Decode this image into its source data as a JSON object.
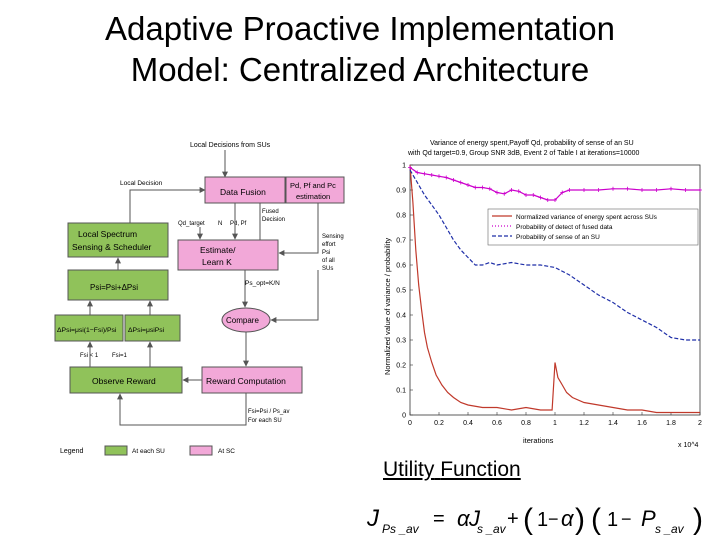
{
  "slide": {
    "title_line1": "Adaptive Proactive Implementation",
    "title_line2": "Model: Centralized Architecture",
    "caption_word1": "Utility",
    "caption_word2": "Function"
  },
  "diagram": {
    "local_decisions_label": "Local Decisions from SUs",
    "local_decision_label": "Local Decision",
    "data_fusion_label": "Data Fusion",
    "estimation_line1": "Pd, Pf and Pc",
    "estimation_line2": "estimation",
    "fused_decision_line1": "Fused",
    "fused_decision_line2": "Decision",
    "qd_target_label": "Qd_target",
    "n_label": "N",
    "pd_pf_label": "Pd, Pf",
    "local_spectrum_line1": "Local Spectrum",
    "local_spectrum_line2": "Sensing & Scheduler",
    "estimate_line1": "Estimate/",
    "estimate_line2": "Learn K",
    "sensing_effort_line1": "Sensing",
    "sensing_effort_line2": "effort",
    "sensing_effort_line3": "Psi",
    "sensing_effort_line4": "of all",
    "sensing_effort_line5": "SUs",
    "ps_update_label": "Psi=Psi+ΔPsi",
    "ps_opt_label": "Ps_opt=K/N",
    "compare_label": "Compare",
    "delta_left_label": "ΔPsi=μsi(1−Fsi)/Psi",
    "delta_right_label": "ΔPsi=μsiPsi",
    "fsi_less_label": "Fsi < 1",
    "fsi_equal_label": "Fsi=1",
    "observe_reward_label": "Observe Reward",
    "reward_computation_label": "Reward Computation",
    "reward_formula_line1": "Fsi=Psi / Ps_av",
    "reward_formula_line2": "For each SU",
    "legend_label": "Legend",
    "legend_su_label": "At each SU",
    "legend_sc_label": "At SC",
    "colors": {
      "green": "#90c25a",
      "pink": "#f2a8d8",
      "box_border": "#555555"
    }
  },
  "chart_data": {
    "type": "line",
    "title_line1": "Variance of energy spent,Payoff Qd, probability of sense of an SU",
    "title_line2": "with Qd target=0.9, Group SNR 3dB, Event 2 of Table I at iterations=10000",
    "xlabel": "iterations",
    "ylabel": "Normalized value of variance / probability",
    "x_multiplier_label": "x 10^4",
    "xlim": [
      0,
      2
    ],
    "ylim": [
      0,
      1
    ],
    "x_ticks": [
      "0",
      "0.2",
      "0.4",
      "0.6",
      "0.8",
      "1",
      "1.2",
      "1.4",
      "1.6",
      "1.8",
      "2"
    ],
    "y_ticks": [
      "0",
      "0.1",
      "0.2",
      "0.3",
      "0.4",
      "0.5",
      "0.6",
      "0.7",
      "0.8",
      "0.9",
      "1"
    ],
    "legend_position": "top-right",
    "series": [
      {
        "name": "Normalized variance of energy spent across SUs",
        "color": "#c0392b",
        "style": "solid",
        "x": [
          0,
          0.02,
          0.04,
          0.06,
          0.08,
          0.1,
          0.12,
          0.15,
          0.18,
          0.22,
          0.26,
          0.3,
          0.35,
          0.4,
          0.5,
          0.6,
          0.7,
          0.8,
          0.9,
          0.98,
          1.0,
          1.02,
          1.05,
          1.08,
          1.12,
          1.2,
          1.3,
          1.4,
          1.5,
          1.6,
          1.7,
          1.8,
          1.9,
          2.0
        ],
        "y": [
          1.0,
          0.85,
          0.66,
          0.52,
          0.42,
          0.33,
          0.27,
          0.21,
          0.16,
          0.12,
          0.09,
          0.07,
          0.05,
          0.04,
          0.03,
          0.03,
          0.02,
          0.03,
          0.02,
          0.02,
          0.21,
          0.15,
          0.12,
          0.09,
          0.07,
          0.05,
          0.04,
          0.03,
          0.02,
          0.02,
          0.01,
          0.01,
          0.01,
          0.01
        ]
      },
      {
        "name": "Probability of detect of fused data",
        "color": "#cc00cc",
        "style": "dot-plus",
        "x": [
          0,
          0.05,
          0.1,
          0.15,
          0.2,
          0.25,
          0.3,
          0.35,
          0.4,
          0.45,
          0.5,
          0.55,
          0.6,
          0.65,
          0.7,
          0.75,
          0.8,
          0.85,
          0.9,
          0.95,
          1.0,
          1.05,
          1.1,
          1.2,
          1.3,
          1.4,
          1.5,
          1.6,
          1.7,
          1.8,
          1.9,
          2.0
        ],
        "y": [
          0.99,
          0.97,
          0.965,
          0.96,
          0.955,
          0.95,
          0.94,
          0.93,
          0.92,
          0.91,
          0.91,
          0.905,
          0.89,
          0.885,
          0.9,
          0.895,
          0.88,
          0.88,
          0.87,
          0.86,
          0.86,
          0.89,
          0.9,
          0.9,
          0.9,
          0.905,
          0.905,
          0.9,
          0.9,
          0.905,
          0.9,
          0.9
        ]
      },
      {
        "name": "Probability of sense of an SU",
        "color": "#1f2fa8",
        "style": "dashed",
        "x": [
          0,
          0.05,
          0.1,
          0.15,
          0.2,
          0.25,
          0.3,
          0.35,
          0.4,
          0.45,
          0.5,
          0.55,
          0.6,
          0.7,
          0.8,
          0.9,
          1.0,
          1.1,
          1.2,
          1.3,
          1.4,
          1.5,
          1.6,
          1.7,
          1.8,
          1.9,
          2.0
        ],
        "y": [
          0.98,
          0.93,
          0.88,
          0.84,
          0.8,
          0.75,
          0.7,
          0.66,
          0.63,
          0.6,
          0.6,
          0.61,
          0.6,
          0.61,
          0.6,
          0.6,
          0.59,
          0.56,
          0.52,
          0.48,
          0.45,
          0.41,
          0.38,
          0.35,
          0.31,
          0.3,
          0.3
        ]
      }
    ]
  },
  "formula": {
    "lhs": "J",
    "lhs_sub": "Ps _av",
    "equals": "=",
    "alpha": "α",
    "term1": "J",
    "term1_sub": "s _av",
    "plus": "+",
    "open1": "(",
    "one1": "1",
    "minus1": "−",
    "alpha2": "α",
    "close1": ")",
    "open2": "(",
    "one2": "1",
    "minus2": "−",
    "p": "P",
    "p_sub": "s _av",
    "close2": ")"
  }
}
